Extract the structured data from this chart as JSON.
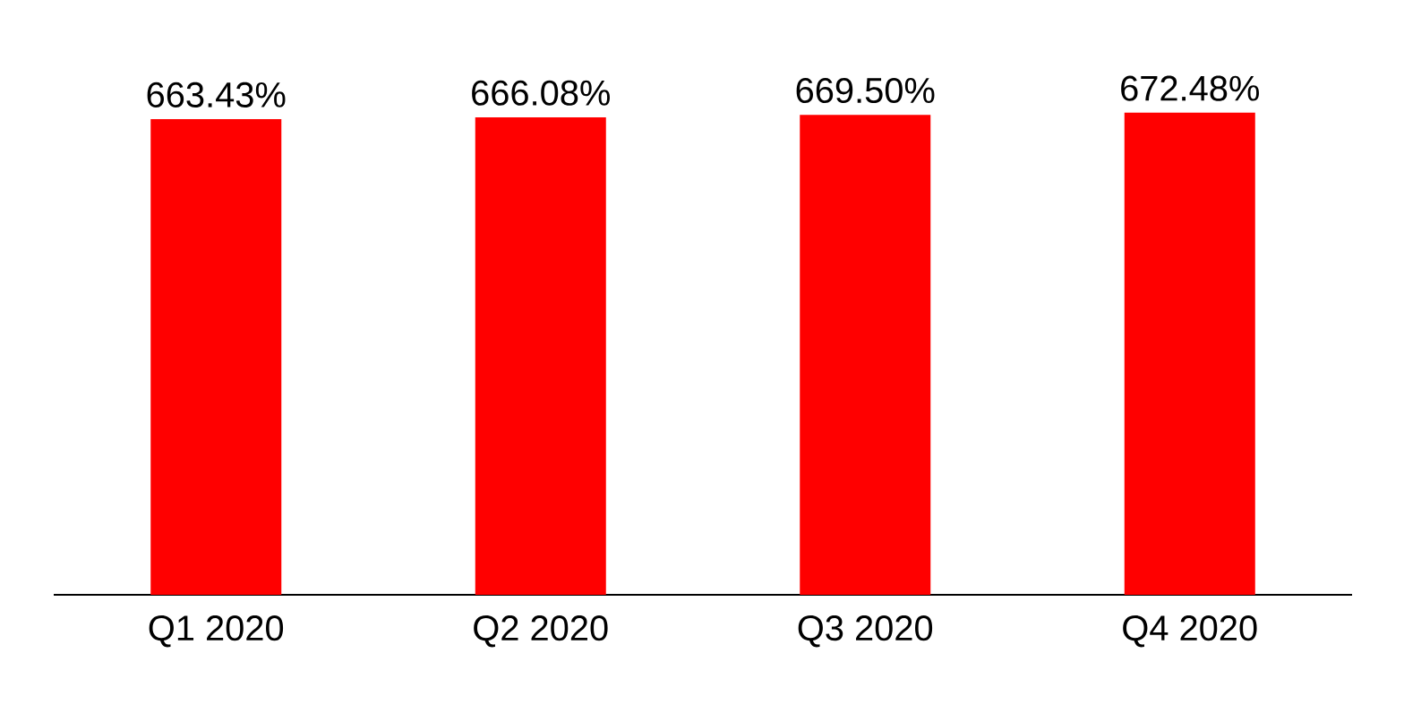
{
  "chart_data": {
    "type": "bar",
    "categories": [
      "Q1 2020",
      "Q2 2020",
      "Q3 2020",
      "Q4 2020"
    ],
    "values": [
      663.43,
      666.08,
      669.5,
      672.48
    ],
    "value_labels": [
      "663.43%",
      "666.08%",
      "669.50%",
      "672.48%"
    ],
    "color": "#ff0000"
  }
}
